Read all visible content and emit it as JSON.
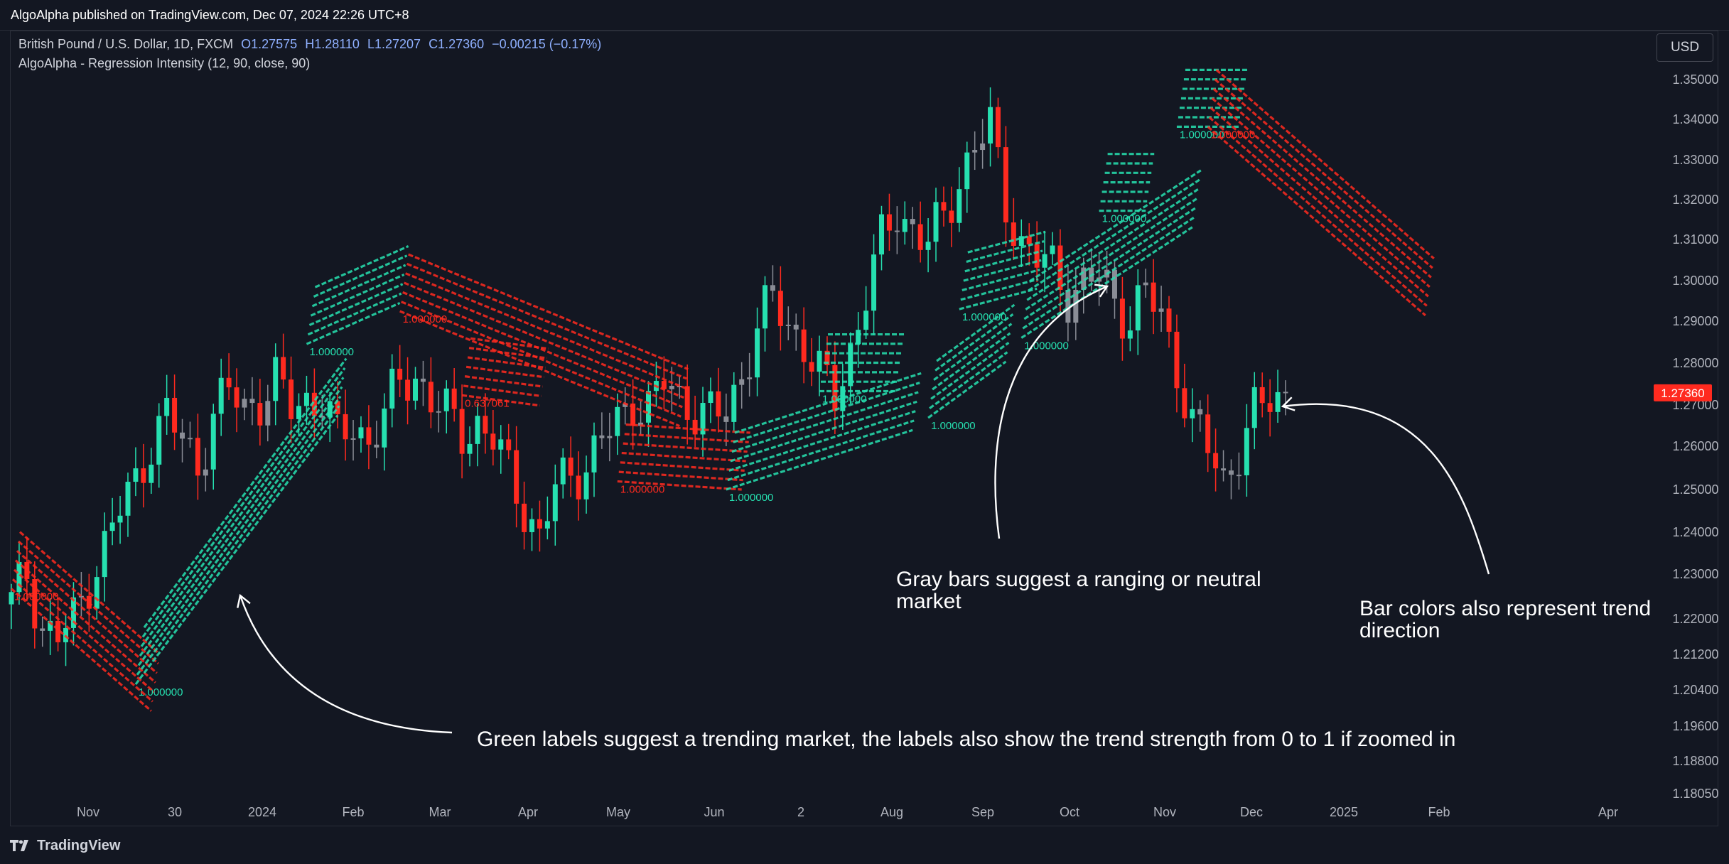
{
  "header": {
    "publisher": "AlgoAlpha published on TradingView.com, Dec 07, 2024 22:26 UTC+8"
  },
  "legend": {
    "symbol": "British Pound / U.S. Dollar, 1D, FXCM",
    "open": "O1.27575",
    "high": "H1.28110",
    "low": "L1.27207",
    "close": "C1.27360",
    "change": "−0.00215 (−0.17%)",
    "indicator": "AlgoAlpha - Regression Intensity (12, 90, close, 90)"
  },
  "currency_button": "USD",
  "footer": {
    "brand": "TradingView"
  },
  "annotations": [
    {
      "id": "gray",
      "text": "Gray bars suggest a ranging or neutral market"
    },
    {
      "id": "barcolor",
      "text": "Bar colors also represent trend direction"
    },
    {
      "id": "green",
      "text": "Green labels suggest a trending market, the labels also show the trend strength from 0 to 1 if zoomed in"
    }
  ],
  "colors": {
    "bull": "#26e0b0",
    "bear": "#ff2a1f",
    "neutral": "#8a8d96",
    "text": "#d1d4dc"
  },
  "chart_data": {
    "type": "candlestick",
    "x_tick_labels": [
      "Nov",
      "30",
      "2024",
      "Feb",
      "Mar",
      "Apr",
      "May",
      "Jun",
      "2",
      "Aug",
      "Sep",
      "Oct",
      "Nov",
      "Dec",
      "2025",
      "Feb",
      "Apr"
    ],
    "y_tick_labels": [
      "1.35000",
      "1.34000",
      "1.33000",
      "1.32000",
      "1.31000",
      "1.30000",
      "1.29000",
      "1.28000",
      "1.27000",
      "1.26000",
      "1.25000",
      "1.24000",
      "1.23000",
      "1.22000",
      "1.21200",
      "1.20400",
      "1.19600",
      "1.18800",
      "1.18050"
    ],
    "ylim": [
      1.1805,
      1.355
    ],
    "last_price": "1.27360",
    "close_path": [
      {
        "x": 0,
        "y": 1.222
      },
      {
        "x": 2,
        "y": 1.23
      },
      {
        "x": 4,
        "y": 1.216
      },
      {
        "x": 6,
        "y": 1.214
      },
      {
        "x": 8,
        "y": 1.218
      },
      {
        "x": 10,
        "y": 1.228
      },
      {
        "x": 12,
        "y": 1.236
      },
      {
        "x": 14,
        "y": 1.245
      },
      {
        "x": 16,
        "y": 1.252
      },
      {
        "x": 18,
        "y": 1.262
      },
      {
        "x": 20,
        "y": 1.268
      },
      {
        "x": 22,
        "y": 1.262
      },
      {
        "x": 24,
        "y": 1.256
      },
      {
        "x": 26,
        "y": 1.268
      },
      {
        "x": 28,
        "y": 1.274
      },
      {
        "x": 30,
        "y": 1.27
      },
      {
        "x": 32,
        "y": 1.272
      },
      {
        "x": 34,
        "y": 1.276
      },
      {
        "x": 36,
        "y": 1.27
      },
      {
        "x": 38,
        "y": 1.272
      },
      {
        "x": 40,
        "y": 1.272
      },
      {
        "x": 42,
        "y": 1.262
      },
      {
        "x": 44,
        "y": 1.266
      },
      {
        "x": 46,
        "y": 1.262
      },
      {
        "x": 48,
        "y": 1.268
      },
      {
        "x": 50,
        "y": 1.276
      },
      {
        "x": 52,
        "y": 1.278
      },
      {
        "x": 54,
        "y": 1.272
      },
      {
        "x": 56,
        "y": 1.268
      },
      {
        "x": 58,
        "y": 1.264
      },
      {
        "x": 60,
        "y": 1.266
      },
      {
        "x": 62,
        "y": 1.262
      },
      {
        "x": 64,
        "y": 1.254
      },
      {
        "x": 66,
        "y": 1.246
      },
      {
        "x": 68,
        "y": 1.238
      },
      {
        "x": 70,
        "y": 1.25
      },
      {
        "x": 72,
        "y": 1.254
      },
      {
        "x": 74,
        "y": 1.256
      },
      {
        "x": 76,
        "y": 1.262
      },
      {
        "x": 78,
        "y": 1.266
      },
      {
        "x": 80,
        "y": 1.272
      },
      {
        "x": 82,
        "y": 1.27
      },
      {
        "x": 84,
        "y": 1.276
      },
      {
        "x": 86,
        "y": 1.272
      },
      {
        "x": 88,
        "y": 1.27
      },
      {
        "x": 90,
        "y": 1.268
      },
      {
        "x": 92,
        "y": 1.268
      },
      {
        "x": 94,
        "y": 1.278
      },
      {
        "x": 96,
        "y": 1.29
      },
      {
        "x": 98,
        "y": 1.296
      },
      {
        "x": 100,
        "y": 1.29
      },
      {
        "x": 102,
        "y": 1.286
      },
      {
        "x": 104,
        "y": 1.278
      },
      {
        "x": 106,
        "y": 1.272
      },
      {
        "x": 108,
        "y": 1.284
      },
      {
        "x": 110,
        "y": 1.298
      },
      {
        "x": 112,
        "y": 1.31
      },
      {
        "x": 114,
        "y": 1.318
      },
      {
        "x": 116,
        "y": 1.314
      },
      {
        "x": 118,
        "y": 1.31
      },
      {
        "x": 120,
        "y": 1.316
      },
      {
        "x": 122,
        "y": 1.326
      },
      {
        "x": 124,
        "y": 1.334
      },
      {
        "x": 126,
        "y": 1.338
      },
      {
        "x": 128,
        "y": 1.32
      },
      {
        "x": 130,
        "y": 1.31
      },
      {
        "x": 132,
        "y": 1.306
      },
      {
        "x": 134,
        "y": 1.304
      },
      {
        "x": 136,
        "y": 1.298
      },
      {
        "x": 138,
        "y": 1.3
      },
      {
        "x": 140,
        "y": 1.302
      },
      {
        "x": 142,
        "y": 1.296
      },
      {
        "x": 144,
        "y": 1.292
      },
      {
        "x": 146,
        "y": 1.298
      },
      {
        "x": 148,
        "y": 1.292
      },
      {
        "x": 150,
        "y": 1.28
      },
      {
        "x": 152,
        "y": 1.266
      },
      {
        "x": 154,
        "y": 1.26
      },
      {
        "x": 156,
        "y": 1.252
      },
      {
        "x": 158,
        "y": 1.26
      },
      {
        "x": 160,
        "y": 1.268
      },
      {
        "x": 162,
        "y": 1.272
      },
      {
        "x": 164,
        "y": 1.2736
      }
    ],
    "regression_bands": [
      {
        "trend": "bear",
        "label": "1.000000",
        "start": {
          "x": 0,
          "y": 1.2258
        },
        "end": {
          "x": 18,
          "y": 1.196
        }
      },
      {
        "trend": "bull",
        "label": "1.000000",
        "start": {
          "x": 16,
          "y": 1.2025
        },
        "end": {
          "x": 42,
          "y": 1.2681
        }
      },
      {
        "trend": "bull",
        "label": "1.000000",
        "start": {
          "x": 38,
          "y": 1.2855
        },
        "end": {
          "x": 50,
          "y": 1.2955
        }
      },
      {
        "trend": "bear",
        "label": "1.000000",
        "start": {
          "x": 50,
          "y": 1.2935
        },
        "end": {
          "x": 86,
          "y": 1.2655
        }
      },
      {
        "trend": "bear",
        "label": "0.637061",
        "start": {
          "x": 58,
          "y": 1.273
        },
        "end": {
          "x": 68,
          "y": 1.2705
        }
      },
      {
        "trend": "bear",
        "label": "1.000000",
        "start": {
          "x": 78,
          "y": 1.252
        },
        "end": {
          "x": 94,
          "y": 1.25
        }
      },
      {
        "trend": "bull",
        "label": "1.000000",
        "start": {
          "x": 92,
          "y": 1.25
        },
        "end": {
          "x": 116,
          "y": 1.2645
        }
      },
      {
        "trend": "bull",
        "label": "1.000000",
        "start": {
          "x": 104,
          "y": 1.274
        },
        "end": {
          "x": 114,
          "y": 1.274
        }
      },
      {
        "trend": "bull",
        "label": "1.000000",
        "start": {
          "x": 118,
          "y": 1.2675
        },
        "end": {
          "x": 128,
          "y": 1.2812
        }
      },
      {
        "trend": "bull",
        "label": "1.000000",
        "start": {
          "x": 122,
          "y": 1.294
        },
        "end": {
          "x": 132,
          "y": 1.299
        }
      },
      {
        "trend": "bull",
        "label": "1.000000",
        "start": {
          "x": 130,
          "y": 1.287
        },
        "end": {
          "x": 152,
          "y": 1.314
        }
      },
      {
        "trend": "bull",
        "label": "1.000000",
        "start": {
          "x": 140,
          "y": 1.318
        },
        "end": {
          "x": 146,
          "y": 1.318
        }
      },
      {
        "trend": "bull",
        "label": "1.000000",
        "start": {
          "x": 150,
          "y": 1.3385
        },
        "end": {
          "x": 158,
          "y": 1.3385
        }
      },
      {
        "trend": "bear",
        "label": "1.000000",
        "start": {
          "x": 154,
          "y": 1.3385
        },
        "end": {
          "x": 182,
          "y": 1.2925
        }
      }
    ]
  }
}
